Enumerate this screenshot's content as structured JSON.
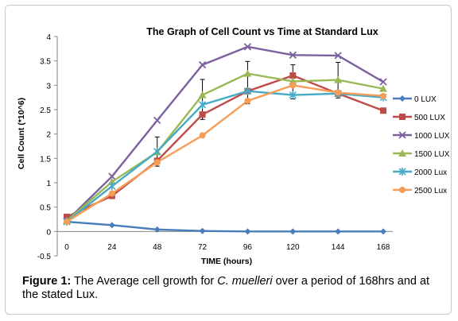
{
  "chart_data": {
    "type": "line",
    "title": "The Graph of Cell Count vs Time at Standard  Lux",
    "xlabel": "TIME (hours)",
    "ylabel": "Cell Count (*10^6)",
    "ylim": [
      -0.5,
      4
    ],
    "yticks": [
      "-0.5",
      "0",
      "0.5",
      "1",
      "1.5",
      "2",
      "2.5",
      "3",
      "3.5",
      "4"
    ],
    "x": [
      0,
      24,
      48,
      72,
      96,
      120,
      144,
      168
    ],
    "xticks": [
      "0",
      "24",
      "48",
      "72",
      "96",
      "120",
      "144",
      "168"
    ],
    "legend_position": "right",
    "series": [
      {
        "name": "0 LUX",
        "color": "#4a7ebb",
        "marker": "diamond",
        "values": [
          0.2,
          0.13,
          0.04,
          0.01,
          0.0,
          0.0,
          0.0,
          0.0
        ]
      },
      {
        "name": "500 LUX",
        "color": "#be4b48",
        "marker": "square",
        "values": [
          0.3,
          0.73,
          1.45,
          2.4,
          2.88,
          3.2,
          2.83,
          2.48
        ]
      },
      {
        "name": "1000 LUX",
        "color": "#7d60a0",
        "marker": "x",
        "values": [
          0.22,
          1.13,
          2.28,
          3.42,
          3.79,
          3.62,
          3.61,
          3.07
        ]
      },
      {
        "name": "1500 LUX",
        "color": "#98b954",
        "marker": "triangle",
        "values": [
          0.22,
          1.02,
          1.63,
          2.8,
          3.24,
          3.08,
          3.11,
          2.93
        ]
      },
      {
        "name": "2000 Lux",
        "color": "#46aac5",
        "marker": "star",
        "values": [
          0.2,
          0.93,
          1.64,
          2.6,
          2.88,
          2.8,
          2.83,
          2.75
        ]
      },
      {
        "name": "2500 Lux",
        "color": "#f59d56",
        "marker": "circle",
        "values": [
          0.2,
          0.78,
          1.42,
          1.97,
          2.68,
          3.0,
          2.85,
          2.78
        ]
      }
    ],
    "error_bars": [
      {
        "x": 48,
        "low": 1.34,
        "high": 1.94
      },
      {
        "x": 72,
        "low": 2.3,
        "high": 3.12
      },
      {
        "x": 96,
        "low": 2.62,
        "high": 3.49
      },
      {
        "x": 120,
        "low": 2.72,
        "high": 3.42
      },
      {
        "x": 144,
        "low": 2.74,
        "high": 3.47
      }
    ]
  },
  "caption": {
    "label": "Figure 1:",
    "text_before": " The Average cell growth for ",
    "species": "C. muelleri",
    "text_after": "  over a period of 168hrs and at the stated Lux."
  }
}
